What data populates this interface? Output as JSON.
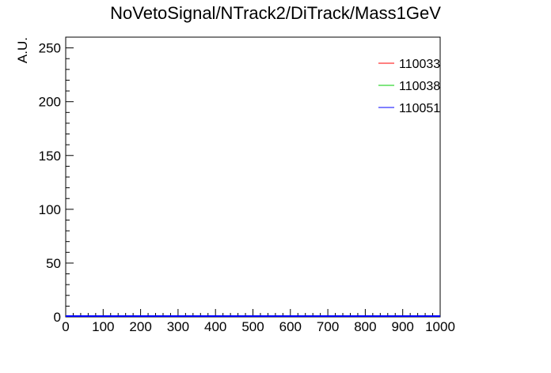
{
  "chart_data": {
    "type": "line",
    "title": "NoVetoSignal/NTrack2/DiTrack/Mass1GeV",
    "xlabel": "",
    "ylabel": "A.U.",
    "xlim": [
      0,
      1000
    ],
    "ylim": [
      0,
      260
    ],
    "x_ticks": [
      "0",
      "100",
      "200",
      "300",
      "400",
      "500",
      "600",
      "700",
      "800",
      "900",
      "1000"
    ],
    "y_ticks": [
      "0",
      "50",
      "100",
      "150",
      "200",
      "250"
    ],
    "grid": false,
    "legend_position": "top-right",
    "series": [
      {
        "name": "110033",
        "color": "#ff0000",
        "x": [
          0,
          1000
        ],
        "y": [
          0,
          0
        ]
      },
      {
        "name": "110038",
        "color": "#00cc00",
        "x": [
          0,
          1000
        ],
        "y": [
          0,
          0
        ]
      },
      {
        "name": "110051",
        "color": "#0000ff",
        "x": [
          0,
          1000
        ],
        "y": [
          0,
          0
        ]
      }
    ]
  }
}
